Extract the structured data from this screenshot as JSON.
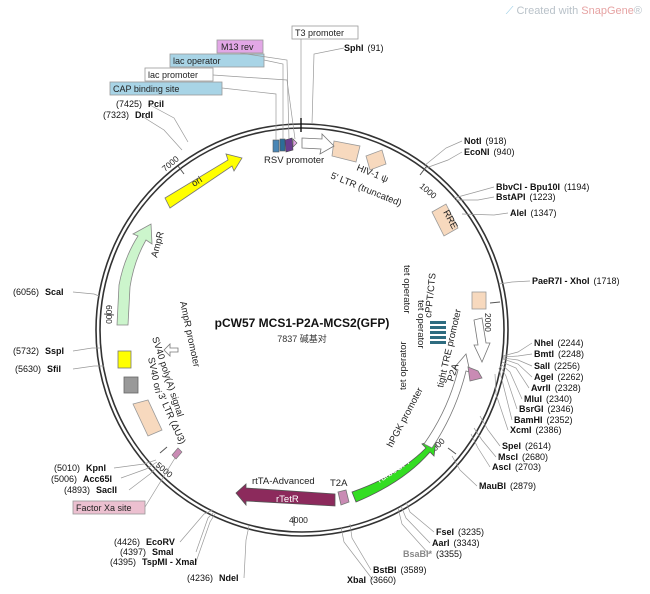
{
  "watermark": {
    "prefix": "Created with ",
    "brand": "SnapGene",
    "mark": "®"
  },
  "plasmid": {
    "name": "pCW57 MCS1-P2A-MCS2(GFP)",
    "length": "7837 碱基对"
  },
  "ticks": [
    "1000",
    "2000",
    "3000",
    "4000",
    "5000",
    "6000",
    "7000"
  ],
  "boxed_features": {
    "t3": "T3 promoter",
    "m13": "M13 rev",
    "lacop": "lac operator",
    "lacprom": "lac promoter",
    "cap": "CAP binding site",
    "factorxa": "Factor Xa site"
  },
  "features": {
    "rsv": "RSV promoter",
    "ltr5": "5' LTR (truncated)",
    "hiv": "HIV-1 ψ",
    "rre": "RRE",
    "cppt": "cPPT/CTS",
    "tetop1": "tet operator",
    "tetop2": "tet operator",
    "tetop3": "tet operator",
    "tre": "tight TRE promoter",
    "p2a": "P2A",
    "hpgk": "hPGK promoter",
    "turbogfp": "TurboGFP",
    "t2a": "T2A",
    "rtetr": "rTetR",
    "rtta": "rtTA-Advanced",
    "ltr3": "3' LTR (ΔU3)",
    "sv40pa": "SV40 poly(A) signal",
    "sv40ori": "SV40 ori",
    "ampprom": "AmpR promoter",
    "ampr": "AmpR",
    "ori": "ori"
  },
  "sites": {
    "sphi": {
      "name": "SphI",
      "pos": "(91)"
    },
    "noti": {
      "name": "NotI",
      "pos": "(918)"
    },
    "econi": {
      "name": "EcoNI",
      "pos": "(940)"
    },
    "bbvci": {
      "name": "BbvCI - Bpu10I",
      "pos": "(1194)"
    },
    "bstapi": {
      "name": "BstAPI",
      "pos": "(1223)"
    },
    "alei": {
      "name": "AleI",
      "pos": "(1347)"
    },
    "paer7i": {
      "name": "PaeR7I - XhoI",
      "pos": "(1718)"
    },
    "nhei": {
      "name": "NheI",
      "pos": "(2244)"
    },
    "bmti": {
      "name": "BmtI",
      "pos": "(2248)"
    },
    "sali": {
      "name": "SalI",
      "pos": "(2256)"
    },
    "agei": {
      "name": "AgeI",
      "pos": "(2262)"
    },
    "avrii": {
      "name": "AvrII",
      "pos": "(2328)"
    },
    "mlui": {
      "name": "MluI",
      "pos": "(2340)"
    },
    "bsrgi": {
      "name": "BsrGI",
      "pos": "(2346)"
    },
    "bamhi": {
      "name": "BamHI",
      "pos": "(2352)"
    },
    "xcmi": {
      "name": "XcmI",
      "pos": "(2386)"
    },
    "spei": {
      "name": "SpeI",
      "pos": "(2614)"
    },
    "msci": {
      "name": "MscI",
      "pos": "(2680)"
    },
    "asci": {
      "name": "AscI",
      "pos": "(2703)"
    },
    "maubi": {
      "name": "MauBI",
      "pos": "(2879)"
    },
    "fsei": {
      "name": "FseI",
      "pos": "(3235)"
    },
    "aari": {
      "name": "AarI",
      "pos": "(3343)"
    },
    "bsabi": {
      "name": "BsaBI*",
      "pos": "(3355)"
    },
    "bstbi": {
      "name": "BstBI",
      "pos": "(3589)"
    },
    "xbai": {
      "name": "XbaI",
      "pos": "(3660)"
    },
    "ndei": {
      "name": "NdeI",
      "pos": "(4236)"
    },
    "tspmi": {
      "name": "TspMI - XmaI",
      "pos": "(4395)"
    },
    "smai": {
      "name": "SmaI",
      "pos": "(4397)"
    },
    "ecorv": {
      "name": "EcoRV",
      "pos": "(4426)"
    },
    "sacii": {
      "name": "SacII",
      "pos": "(4893)"
    },
    "acc65i": {
      "name": "Acc65I",
      "pos": "(5006)"
    },
    "kpni": {
      "name": "KpnI",
      "pos": "(5010)"
    },
    "sfii": {
      "name": "SfiI",
      "pos": "(5630)"
    },
    "sspi": {
      "name": "SspI",
      "pos": "(5732)"
    },
    "scai": {
      "name": "ScaI",
      "pos": "(6056)"
    },
    "drdi": {
      "name": "DrdI",
      "pos": "(7323)"
    },
    "pcii": {
      "name": "PciI",
      "pos": "(7425)"
    }
  },
  "colors": {
    "backbone": "#333333",
    "ori": "#ffff00",
    "ampr": "#ccf5cc",
    "turbogfp": "#33dd22",
    "rtetr": "#8c2a5c",
    "t2a": "#c98bb4",
    "ltr": "#f7d9be",
    "tetop": "#2e6c80",
    "box_blue": "#a8d4e6",
    "box_purple": "#e2a7e6",
    "box_pink": "#ecc0d0"
  }
}
